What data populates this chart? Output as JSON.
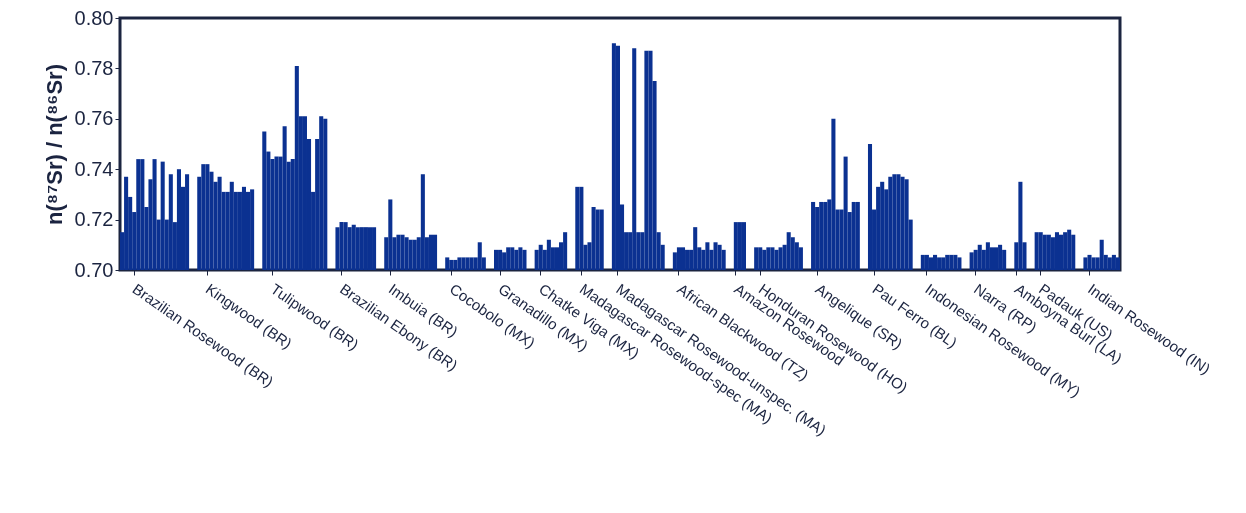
{
  "chart_data": {
    "type": "bar",
    "ylabel": "n(⁸⁷Sr) / n(⁸⁶Sr)",
    "color": "#0b3191",
    "grid": false,
    "ylim": [
      0.7,
      0.8
    ],
    "yticks": [
      {
        "value": 0.7,
        "label": "0.70"
      },
      {
        "value": 0.72,
        "label": "0.72"
      },
      {
        "value": 0.74,
        "label": "0.74"
      },
      {
        "value": 0.76,
        "label": "0.76"
      },
      {
        "value": 0.78,
        "label": "0.78"
      },
      {
        "value": 0.8,
        "label": "0.80"
      }
    ],
    "categories": [
      null,
      null,
      null,
      "Brazilian Rosewood (BR)",
      null,
      null,
      null,
      null,
      null,
      null,
      null,
      null,
      null,
      null,
      null,
      null,
      null,
      null,
      null,
      null,
      null,
      "Kingwood (BR)",
      null,
      null,
      null,
      null,
      null,
      null,
      null,
      null,
      null,
      null,
      null,
      null,
      null,
      null,
      null,
      "Tulipwood (BR)",
      null,
      null,
      null,
      null,
      null,
      null,
      null,
      null,
      null,
      null,
      null,
      null,
      null,
      null,
      null,
      null,
      "Brazilian Ebony (BR)",
      null,
      null,
      null,
      null,
      null,
      null,
      null,
      null,
      null,
      null,
      null,
      "Imbuia (BR)",
      null,
      null,
      null,
      null,
      null,
      null,
      null,
      null,
      null,
      null,
      null,
      null,
      null,
      null,
      "Cocobolo (MX)",
      null,
      null,
      null,
      null,
      null,
      null,
      null,
      null,
      null,
      null,
      null,
      "Granadillo (MX)",
      null,
      null,
      null,
      null,
      null,
      null,
      null,
      null,
      null,
      "Chatke Viga (MX)",
      null,
      null,
      null,
      null,
      null,
      null,
      null,
      null,
      null,
      "Madagascar Rosewood-spec (MA)",
      null,
      null,
      null,
      null,
      null,
      null,
      null,
      null,
      "Madagascar Rosewood-unspec. (MA)",
      null,
      null,
      null,
      null,
      null,
      null,
      null,
      null,
      null,
      null,
      null,
      null,
      null,
      null,
      "African Blackwood (TZ)",
      null,
      null,
      null,
      null,
      null,
      null,
      null,
      null,
      null,
      null,
      null,
      null,
      null,
      "Amazon Rosewood",
      null,
      null,
      null,
      null,
      null,
      "Honduran Rosewood (HO)",
      null,
      null,
      null,
      null,
      null,
      null,
      null,
      null,
      null,
      null,
      null,
      null,
      null,
      "Angelique (SR)",
      null,
      null,
      null,
      null,
      null,
      null,
      null,
      null,
      null,
      null,
      null,
      null,
      null,
      "Pau Ferro (BL)",
      null,
      null,
      null,
      null,
      null,
      null,
      null,
      null,
      null,
      null,
      null,
      null,
      "Indonesian Rosewood (MY)",
      null,
      null,
      null,
      null,
      null,
      null,
      null,
      null,
      null,
      null,
      null,
      "Narra (RP)",
      null,
      null,
      null,
      null,
      null,
      null,
      null,
      null,
      null,
      "Amboyna Burl (LA)",
      null,
      null,
      null,
      null,
      null,
      "Padauk (US)",
      null,
      null,
      null,
      null,
      null,
      null,
      null,
      null,
      null,
      null,
      null,
      "Indian Rosewood (IN)",
      null,
      null,
      null,
      null,
      null,
      null,
      null
    ],
    "values": [
      0.715,
      0.737,
      0.729,
      0.723,
      0.744,
      0.744,
      0.725,
      0.736,
      0.744,
      0.72,
      0.743,
      0.72,
      0.738,
      0.719,
      0.74,
      0.733,
      0.738,
      null,
      null,
      0.737,
      0.742,
      0.742,
      0.739,
      0.735,
      0.737,
      0.731,
      0.731,
      0.735,
      0.731,
      0.731,
      0.733,
      0.731,
      0.732,
      null,
      null,
      0.755,
      0.747,
      0.744,
      0.745,
      0.745,
      0.757,
      0.743,
      0.744,
      0.781,
      0.761,
      0.761,
      0.752,
      0.731,
      0.752,
      0.761,
      0.76,
      null,
      null,
      0.717,
      0.719,
      0.719,
      0.717,
      0.718,
      0.717,
      0.717,
      0.717,
      0.717,
      0.717,
      null,
      null,
      0.713,
      0.728,
      0.713,
      0.714,
      0.714,
      0.713,
      0.712,
      0.712,
      0.713,
      0.738,
      0.713,
      0.714,
      0.714,
      null,
      null,
      0.705,
      0.704,
      0.704,
      0.705,
      0.705,
      0.705,
      0.705,
      0.705,
      0.711,
      0.705,
      null,
      null,
      0.708,
      0.708,
      0.707,
      0.709,
      0.709,
      0.708,
      0.709,
      0.708,
      null,
      null,
      0.708,
      0.71,
      0.708,
      0.712,
      0.709,
      0.709,
      0.711,
      0.715,
      null,
      null,
      0.733,
      0.733,
      0.71,
      0.711,
      0.725,
      0.724,
      0.724,
      null,
      null,
      0.79,
      0.789,
      0.726,
      0.715,
      0.715,
      0.788,
      0.715,
      0.715,
      0.787,
      0.787,
      0.775,
      0.715,
      0.71,
      null,
      null,
      0.707,
      0.709,
      0.709,
      0.708,
      0.708,
      0.717,
      0.709,
      0.708,
      0.711,
      0.708,
      0.711,
      0.71,
      0.708,
      null,
      null,
      0.719,
      0.719,
      0.719,
      null,
      null,
      0.709,
      0.709,
      0.708,
      0.709,
      0.709,
      0.708,
      0.709,
      0.71,
      0.715,
      0.713,
      0.711,
      0.709,
      null,
      null,
      0.727,
      0.725,
      0.727,
      0.727,
      0.728,
      0.76,
      0.724,
      0.724,
      0.745,
      0.723,
      0.727,
      0.727,
      null,
      null,
      0.75,
      0.724,
      0.733,
      0.735,
      0.732,
      0.737,
      0.738,
      0.738,
      0.737,
      0.736,
      0.72,
      null,
      null,
      0.706,
      0.706,
      0.705,
      0.706,
      0.705,
      0.705,
      0.706,
      0.706,
      0.706,
      0.705,
      null,
      null,
      0.707,
      0.708,
      0.71,
      0.708,
      0.711,
      0.709,
      0.709,
      0.71,
      0.708,
      null,
      null,
      0.711,
      0.735,
      0.711,
      null,
      null,
      0.715,
      0.715,
      0.714,
      0.714,
      0.713,
      0.715,
      0.714,
      0.715,
      0.716,
      0.714,
      null,
      null,
      0.705,
      0.706,
      0.705,
      0.705,
      0.712,
      0.706,
      0.705,
      0.706,
      0.705
    ]
  }
}
